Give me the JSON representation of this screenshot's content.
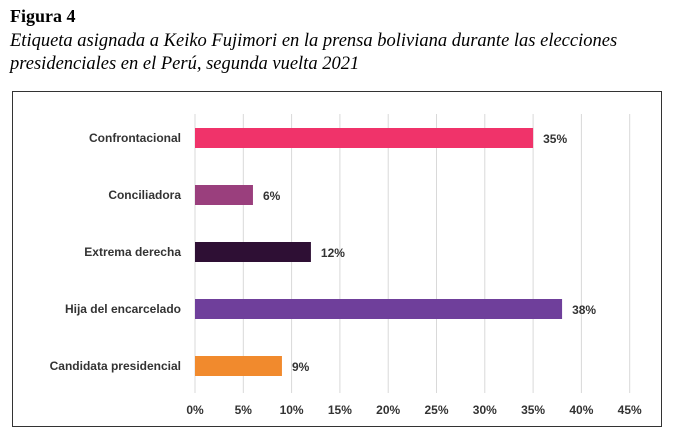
{
  "figure": {
    "label": "Figura 4",
    "caption": "Etiqueta asignada a Keiko Fujimori en la prensa boliviana durante las elecciones presidenciales en el Perú, segunda vuelta 2021"
  },
  "chart_data": {
    "type": "bar",
    "orientation": "horizontal",
    "title": "",
    "xlabel": "",
    "ylabel": "",
    "xlim": [
      0,
      45
    ],
    "grid": true,
    "tick_labels": [
      "0%",
      "5%",
      "10%",
      "15%",
      "20%",
      "25%",
      "30%",
      "35%",
      "40%",
      "45%"
    ],
    "tick_values": [
      0,
      5,
      10,
      15,
      20,
      25,
      30,
      35,
      40,
      45
    ],
    "categories": [
      "Confrontacional",
      "Conciliadora",
      "Extrema derecha",
      "Hija del encarcelado",
      "Candidata presidencial"
    ],
    "values": [
      35,
      6,
      12,
      38,
      9
    ],
    "data_labels": [
      "35%",
      "6%",
      "12%",
      "38%",
      "9%"
    ],
    "colors": [
      "#f0336a",
      "#9a3f7d",
      "#2e0f34",
      "#6f3f9b",
      "#f18a2d"
    ]
  }
}
